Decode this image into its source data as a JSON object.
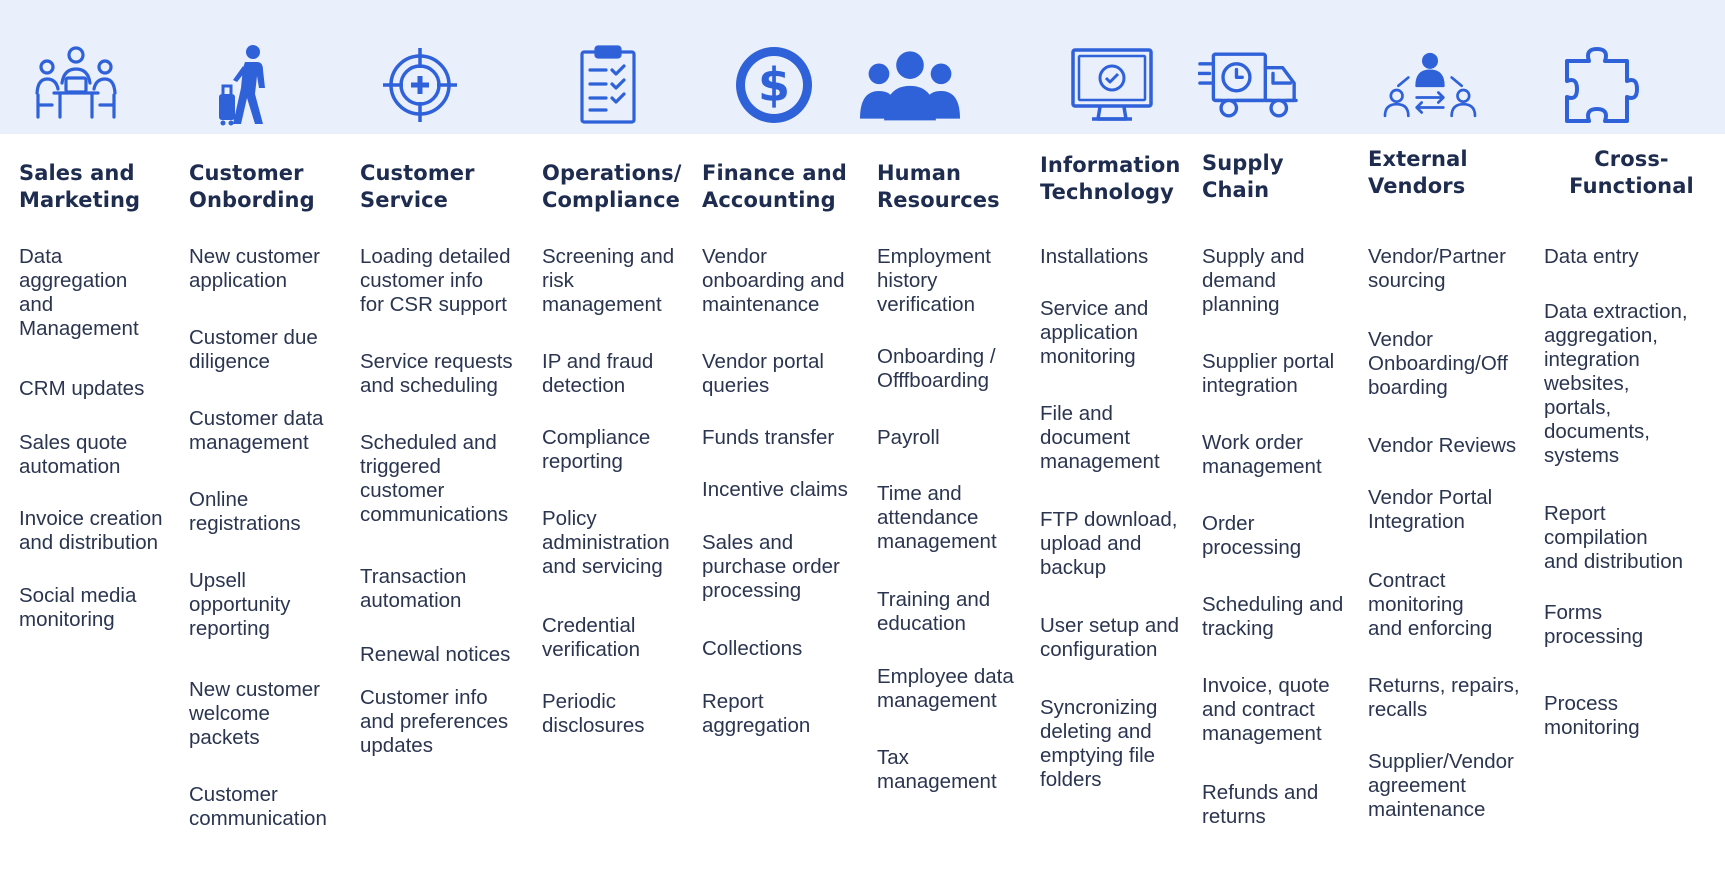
{
  "colors": {
    "icon_band": "#e9effb",
    "icon_blue": "#2f61d9",
    "title_text": "#1e2c4f",
    "body_text": "#2b3550"
  },
  "columns": [
    {
      "icon": "meeting-icon",
      "title": [
        "Sales and",
        "Marketing"
      ],
      "items": [
        [
          "Data",
          "aggregation",
          "and",
          "Management"
        ],
        [
          "CRM updates"
        ],
        [
          "Sales quote",
          "automation"
        ],
        [
          "Invoice creation",
          "and distribution"
        ],
        [
          "Social media",
          "monitoring"
        ]
      ]
    },
    {
      "icon": "traveler-icon",
      "title": [
        "Customer",
        "Onbording"
      ],
      "items": [
        [
          "New customer",
          "application"
        ],
        [
          "Customer due",
          "diligence"
        ],
        [
          "Customer data",
          "management"
        ],
        [
          "Online",
          "registrations"
        ],
        [
          "Upsell",
          "opportunity",
          "reporting"
        ],
        [
          "New customer",
          "welcome",
          "packets"
        ],
        [
          "Customer",
          "communication"
        ]
      ]
    },
    {
      "icon": "target-icon",
      "title": [
        "Customer",
        "Service"
      ],
      "items": [
        [
          "Loading detailed",
          "customer info",
          "for CSR support"
        ],
        [
          "Service requests",
          "and scheduling"
        ],
        [
          "Scheduled and",
          "triggered",
          "customer",
          "communications"
        ],
        [
          "Transaction",
          "automation"
        ],
        [
          "Renewal notices"
        ],
        [
          "Customer info",
          "and preferences",
          "updates"
        ]
      ]
    },
    {
      "icon": "clipboard-checklist-icon",
      "title": [
        "Operations/",
        "Compliance"
      ],
      "items": [
        [
          "Screening and",
          "risk",
          "management"
        ],
        [
          "IP and fraud",
          "detection"
        ],
        [
          "Compliance",
          "reporting"
        ],
        [
          "Policy",
          "administration",
          "and servicing"
        ],
        [
          "Credential",
          "verification"
        ],
        [
          "Periodic",
          "disclosures"
        ]
      ]
    },
    {
      "icon": "dollar-coin-icon",
      "title": [
        "Finance and",
        "Accounting"
      ],
      "items": [
        [
          "Vendor",
          "onboarding and",
          "maintenance"
        ],
        [
          "Vendor portal",
          "queries"
        ],
        [
          "Funds transfer"
        ],
        [
          "Incentive claims"
        ],
        [
          "Sales and",
          "purchase order",
          "processing"
        ],
        [
          "Collections"
        ],
        [
          "Report",
          "aggregation"
        ]
      ]
    },
    {
      "icon": "people-group-icon",
      "title": [
        "Human",
        "Resources"
      ],
      "items": [
        [
          "Employment",
          "history",
          "verification"
        ],
        [
          "Onboarding /",
          "Offfboarding"
        ],
        [
          "Payroll"
        ],
        [
          "Time and",
          "attendance",
          "management"
        ],
        [
          "Training and",
          "education"
        ],
        [
          "Employee data",
          "management"
        ],
        [
          "Tax",
          "management"
        ]
      ]
    },
    {
      "icon": "monitor-check-icon",
      "title": [
        "Information",
        "Technology"
      ],
      "items": [
        [
          "Installations"
        ],
        [
          "Service and",
          "application",
          "monitoring"
        ],
        [
          "File and",
          "document",
          "management"
        ],
        [
          "FTP download,",
          "upload and",
          "backup"
        ],
        [
          "User setup and",
          "configuration"
        ],
        [
          "Syncronizing",
          "deleting and",
          "emptying file",
          "folders"
        ]
      ]
    },
    {
      "icon": "delivery-truck-icon",
      "title": [
        "Supply",
        "Chain"
      ],
      "items": [
        [
          "Supply and",
          "demand",
          "planning"
        ],
        [
          "Supplier portal",
          "integration"
        ],
        [
          "Work order",
          "management"
        ],
        [
          "Order",
          "processing"
        ],
        [
          "Scheduling and",
          "tracking"
        ],
        [
          "Invoice, quote",
          "and contract",
          "management"
        ],
        [
          "Refunds and",
          "returns"
        ]
      ]
    },
    {
      "icon": "vendor-exchange-icon",
      "title": [
        "External",
        "Vendors"
      ],
      "items": [
        [
          "Vendor/Partner",
          "sourcing"
        ],
        [
          "Vendor",
          "Onboarding/Off",
          "boarding"
        ],
        [
          "Vendor Reviews"
        ],
        [
          "Vendor Portal",
          "Integration"
        ],
        [
          "Contract",
          "monitoring",
          "and enforcing"
        ],
        [
          "Returns, repairs,",
          "recalls"
        ],
        [
          "Supplier/Vendor",
          "agreement",
          "maintenance"
        ]
      ]
    },
    {
      "icon": "puzzle-piece-icon",
      "title": [
        "Cross-",
        "Functional"
      ],
      "items": [
        [
          "Data entry"
        ],
        [
          "Data extraction,",
          "aggregation,",
          "integration",
          "websites,",
          "portals,",
          "documents,",
          "systems"
        ],
        [
          "Report",
          "compilation",
          "and distribution"
        ],
        [
          "Forms",
          "processing"
        ],
        [
          "Process",
          "monitoring"
        ]
      ]
    }
  ]
}
